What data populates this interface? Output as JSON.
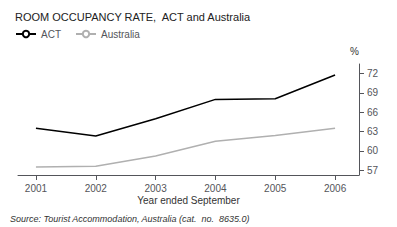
{
  "chart_data": {
    "type": "line",
    "title": "ROOM OCCUPANCY RATE,  ACT and Australia",
    "xlabel": "Year ended September",
    "ylabel": "%",
    "source": "Source: Tourist Accommodation, Australia (cat.  no.  8635.0)",
    "x": [
      2001,
      2002,
      2003,
      2004,
      2005,
      2006
    ],
    "series": [
      {
        "name": "ACT",
        "color": "#000000",
        "values": [
          63.5,
          62.3,
          65.0,
          68.0,
          68.1,
          71.8
        ]
      },
      {
        "name": "Australia",
        "color": "#b0b0b0",
        "values": [
          57.5,
          57.6,
          59.2,
          61.5,
          62.4,
          63.5
        ]
      }
    ],
    "xlim": [
      2000.7,
      2006.4
    ],
    "xticks": [
      2001,
      2002,
      2003,
      2004,
      2005,
      2006
    ],
    "ylim": [
      56.25,
      73.5
    ],
    "yticks": [
      57,
      60,
      63,
      66,
      69,
      72
    ],
    "grid": false,
    "legend": "upper left"
  }
}
